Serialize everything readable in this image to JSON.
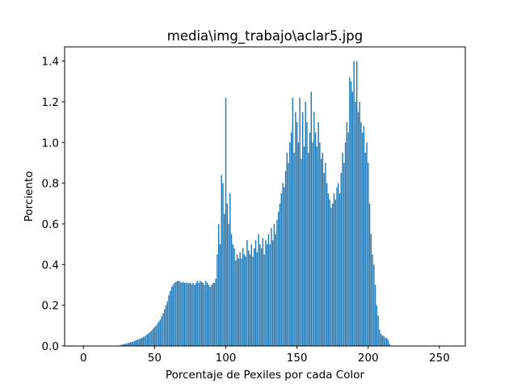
{
  "chart_data": {
    "type": "bar",
    "title": "media\\img_trabajo\\aclar5.jpg",
    "xlabel": "Porcentaje de Pexiles por cada Color",
    "ylabel": "Porciento",
    "color": "#1f77b4",
    "x": [
      0,
      1,
      2,
      3,
      4,
      5,
      6,
      7,
      8,
      9,
      10,
      11,
      12,
      13,
      14,
      15,
      16,
      17,
      18,
      19,
      20,
      21,
      22,
      23,
      24,
      25,
      26,
      27,
      28,
      29,
      30,
      31,
      32,
      33,
      34,
      35,
      36,
      37,
      38,
      39,
      40,
      41,
      42,
      43,
      44,
      45,
      46,
      47,
      48,
      49,
      50,
      51,
      52,
      53,
      54,
      55,
      56,
      57,
      58,
      59,
      60,
      61,
      62,
      63,
      64,
      65,
      66,
      67,
      68,
      69,
      70,
      71,
      72,
      73,
      74,
      75,
      76,
      77,
      78,
      79,
      80,
      81,
      82,
      83,
      84,
      85,
      86,
      87,
      88,
      89,
      90,
      91,
      92,
      93,
      94,
      95,
      96,
      97,
      98,
      99,
      100,
      101,
      102,
      103,
      104,
      105,
      106,
      107,
      108,
      109,
      110,
      111,
      112,
      113,
      114,
      115,
      116,
      117,
      118,
      119,
      120,
      121,
      122,
      123,
      124,
      125,
      126,
      127,
      128,
      129,
      130,
      131,
      132,
      133,
      134,
      135,
      136,
      137,
      138,
      139,
      140,
      141,
      142,
      143,
      144,
      145,
      146,
      147,
      148,
      149,
      150,
      151,
      152,
      153,
      154,
      155,
      156,
      157,
      158,
      159,
      160,
      161,
      162,
      163,
      164,
      165,
      166,
      167,
      168,
      169,
      170,
      171,
      172,
      173,
      174,
      175,
      176,
      177,
      178,
      179,
      180,
      181,
      182,
      183,
      184,
      185,
      186,
      187,
      188,
      189,
      190,
      191,
      192,
      193,
      194,
      195,
      196,
      197,
      198,
      199,
      200,
      201,
      202,
      203,
      204,
      205,
      206,
      207,
      208,
      209,
      210,
      211,
      212,
      213,
      214,
      215,
      216,
      217,
      218,
      219,
      220,
      221,
      222,
      223,
      224,
      225,
      226,
      227,
      228,
      229,
      230,
      231,
      232,
      233,
      234,
      235,
      236,
      237,
      238,
      239,
      240,
      241,
      242,
      243,
      244,
      245,
      246,
      247,
      248,
      249,
      250,
      251,
      252,
      253,
      254,
      255
    ],
    "values": [
      0,
      0,
      0,
      0,
      0,
      0,
      0,
      0,
      0,
      0,
      0,
      0,
      0,
      0,
      0,
      0,
      0,
      0,
      0,
      0,
      0,
      0,
      0,
      0,
      0,
      0.002,
      0.004,
      0.006,
      0.008,
      0.01,
      0.012,
      0.014,
      0.016,
      0.018,
      0.02,
      0.022,
      0.025,
      0.028,
      0.03,
      0.033,
      0.036,
      0.04,
      0.044,
      0.048,
      0.053,
      0.058,
      0.064,
      0.07,
      0.077,
      0.085,
      0.093,
      0.1,
      0.11,
      0.12,
      0.13,
      0.145,
      0.16,
      0.18,
      0.2,
      0.22,
      0.25,
      0.27,
      0.29,
      0.3,
      0.31,
      0.315,
      0.32,
      0.32,
      0.315,
      0.31,
      0.315,
      0.31,
      0.31,
      0.312,
      0.308,
      0.31,
      0.305,
      0.31,
      0.3,
      0.31,
      0.32,
      0.31,
      0.32,
      0.315,
      0.31,
      0.3,
      0.32,
      0.31,
      0.3,
      0.29,
      0.3,
      0.31,
      0.31,
      0.33,
      0.45,
      0.6,
      0.5,
      0.84,
      0.8,
      0.65,
      1.22,
      0.7,
      0.6,
      0.75,
      0.55,
      0.5,
      0.48,
      0.42,
      0.45,
      0.43,
      0.46,
      0.43,
      0.48,
      0.45,
      0.44,
      0.52,
      0.47,
      0.45,
      0.5,
      0.44,
      0.48,
      0.52,
      0.46,
      0.55,
      0.5,
      0.48,
      0.53,
      0.45,
      0.52,
      0.5,
      0.55,
      0.5,
      0.58,
      0.52,
      0.6,
      0.55,
      0.62,
      0.66,
      0.7,
      0.75,
      0.8,
      0.78,
      0.86,
      0.95,
      0.9,
      1.0,
      1.05,
      1.22,
      0.95,
      1.15,
      1.1,
      1.0,
      1.22,
      0.92,
      1.15,
      0.98,
      1.2,
      1.1,
      0.95,
      1.05,
      1.25,
      1.0,
      1.15,
      1.05,
      0.98,
      1.1,
      1.0,
      0.92,
      0.95,
      0.85,
      0.9,
      0.8,
      0.75,
      0.72,
      0.68,
      0.7,
      0.75,
      0.72,
      0.78,
      0.8,
      0.75,
      0.85,
      0.95,
      0.9,
      1.0,
      1.1,
      1.05,
      1.32,
      1.3,
      1.25,
      1.4,
      1.2,
      1.4,
      1.15,
      1.2,
      1.1,
      1.05,
      1.08,
      0.95,
      1.0,
      0.9,
      0.7,
      0.55,
      0.45,
      0.4,
      0.3,
      0.2,
      0.15,
      0.08,
      0.06,
      0.05,
      0.05,
      0.04,
      0.04,
      0.03,
      0.01,
      0,
      0,
      0,
      0,
      0,
      0,
      0,
      0,
      0,
      0,
      0,
      0,
      0,
      0,
      0,
      0,
      0,
      0,
      0,
      0,
      0,
      0,
      0,
      0,
      0,
      0,
      0,
      0,
      0,
      0,
      0,
      0,
      0,
      0,
      0,
      0,
      0,
      0,
      0,
      0
    ],
    "xlim": [
      -13.19,
      268.19
    ],
    "xticks": [
      0,
      50,
      100,
      150,
      200,
      250
    ],
    "ylim": [
      0,
      1.47
    ],
    "yticks": [
      {
        "value": 0,
        "label": "0.0"
      },
      0.2,
      0.4,
      0.6,
      0.8,
      {
        "value": 1,
        "label": "1.0"
      },
      1.2,
      1.4
    ]
  }
}
